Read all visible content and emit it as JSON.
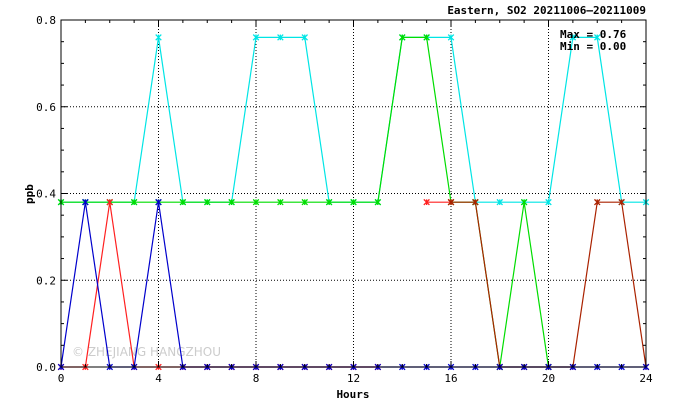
{
  "chart_data": {
    "type": "line",
    "title": "Eastern, SO2 20211006–20211009",
    "xlabel": "Hours",
    "ylabel": "ppb",
    "xlim": [
      0,
      24
    ],
    "ylim": [
      0,
      0.8
    ],
    "xticks": [
      0,
      4,
      8,
      12,
      16,
      20,
      24
    ],
    "yticks": [
      0.0,
      0.2,
      0.4,
      0.6,
      0.8
    ],
    "ytick_labels": [
      "0.0",
      "0.2",
      "0.4",
      "0.6",
      "0.8"
    ],
    "grid": true,
    "max_label": "Max = 0.76",
    "min_label": "Min = 0.00",
    "watermark": "© ZHEJIANG HANGZHOU",
    "x": [
      0,
      1,
      2,
      3,
      4,
      5,
      6,
      7,
      8,
      9,
      10,
      11,
      12,
      13,
      14,
      15,
      16,
      17,
      18,
      19,
      20,
      21,
      22,
      23,
      24
    ],
    "series": [
      {
        "color": "#00e5e5",
        "values": [
          0.38,
          0.38,
          0.38,
          0.38,
          0.76,
          0.38,
          0.38,
          0.38,
          0.76,
          0.76,
          0.76,
          0.38,
          0.38,
          0.38,
          0.76,
          0.76,
          0.76,
          0.38,
          0.38,
          0.38,
          0.38,
          0.76,
          0.76,
          0.38,
          0.38
        ]
      },
      {
        "color": "#00dd00",
        "values": [
          0.38,
          0.38,
          0.38,
          0.38,
          0.38,
          0.38,
          0.38,
          0.38,
          0.38,
          0.38,
          0.38,
          0.38,
          0.38,
          0.38,
          0.76,
          0.76,
          0.38,
          0.38,
          0.0,
          0.38,
          0.0,
          null,
          null,
          null,
          null
        ]
      },
      {
        "color": "#ff2020",
        "values": [
          0.0,
          0.0,
          0.38,
          0.0,
          0.0,
          0.0,
          0.0,
          0.0,
          0.0,
          0.0,
          0.0,
          0.0,
          0.0,
          0.0,
          null,
          0.38,
          0.38,
          null,
          null,
          null,
          null,
          null,
          null,
          null,
          null
        ]
      },
      {
        "color": "#aa2200",
        "values": [
          null,
          null,
          null,
          null,
          null,
          null,
          null,
          null,
          null,
          null,
          null,
          null,
          null,
          null,
          null,
          null,
          0.38,
          0.38,
          0.0,
          0.0,
          0.0,
          0.0,
          0.38,
          0.38,
          0.0
        ]
      },
      {
        "color": "#0000cc",
        "values": [
          0.0,
          0.38,
          0.0,
          0.0,
          0.38,
          0.0,
          0.0,
          0.0,
          0.0,
          0.0,
          0.0,
          0.0,
          0.0,
          0.0,
          0.0,
          0.0,
          0.0,
          0.0,
          0.0,
          0.0,
          0.0,
          0.0,
          0.0,
          0.0,
          0.0
        ]
      }
    ]
  }
}
